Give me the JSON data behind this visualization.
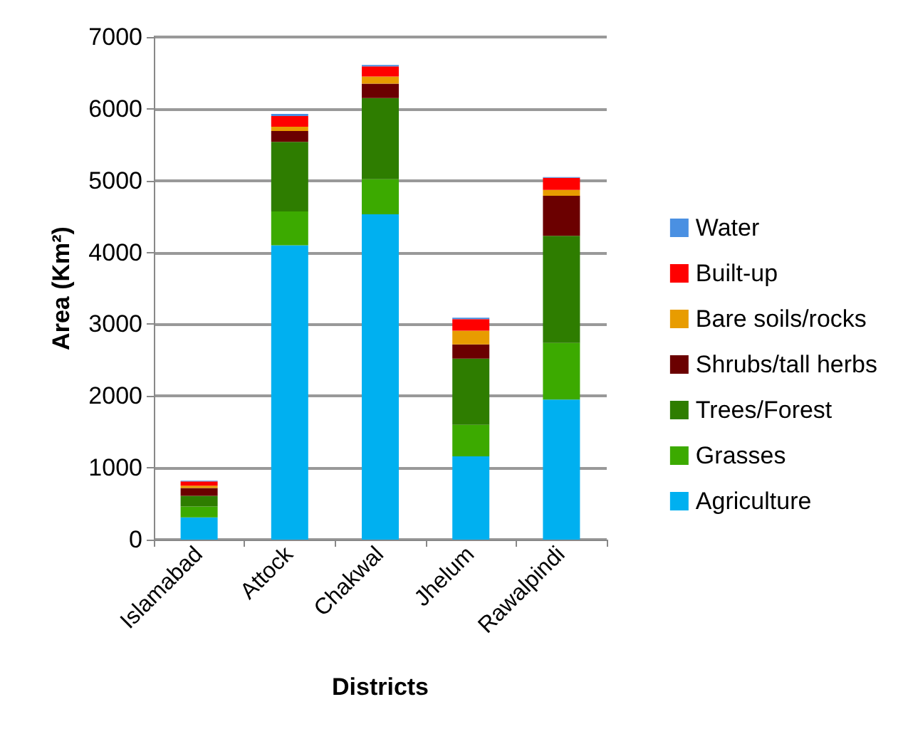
{
  "chart_data": {
    "type": "bar",
    "stacked": true,
    "xlabel": "Districts",
    "ylabel": "Area (Km²)",
    "categories": [
      "Islamabad",
      "Attock",
      "Chakwal",
      "Jhelum",
      "Rawalpindi"
    ],
    "series": [
      {
        "name": "Agriculture",
        "color": "#00b0f0",
        "values": [
          310,
          4100,
          4530,
          1160,
          1950
        ]
      },
      {
        "name": "Grasses",
        "color": "#3caa00",
        "values": [
          150,
          470,
          490,
          440,
          790
        ]
      },
      {
        "name": "Trees/Forest",
        "color": "#2e7d00",
        "values": [
          150,
          970,
          1130,
          920,
          1490
        ]
      },
      {
        "name": "Shrubs/tall herbs",
        "color": "#6b0000",
        "values": [
          110,
          150,
          200,
          200,
          560
        ]
      },
      {
        "name": "Bare soils/rocks",
        "color": "#e89c00",
        "values": [
          30,
          60,
          100,
          190,
          80
        ]
      },
      {
        "name": "Built-up",
        "color": "#ff0000",
        "values": [
          60,
          150,
          140,
          160,
          170
        ]
      },
      {
        "name": "Water",
        "color": "#4a90e2",
        "values": [
          10,
          30,
          20,
          20,
          10
        ]
      }
    ],
    "ylim": [
      0,
      7000
    ],
    "yticks": [
      0,
      1000,
      2000,
      3000,
      4000,
      5000,
      6000,
      7000
    ],
    "grid": "y",
    "legend": "right"
  }
}
